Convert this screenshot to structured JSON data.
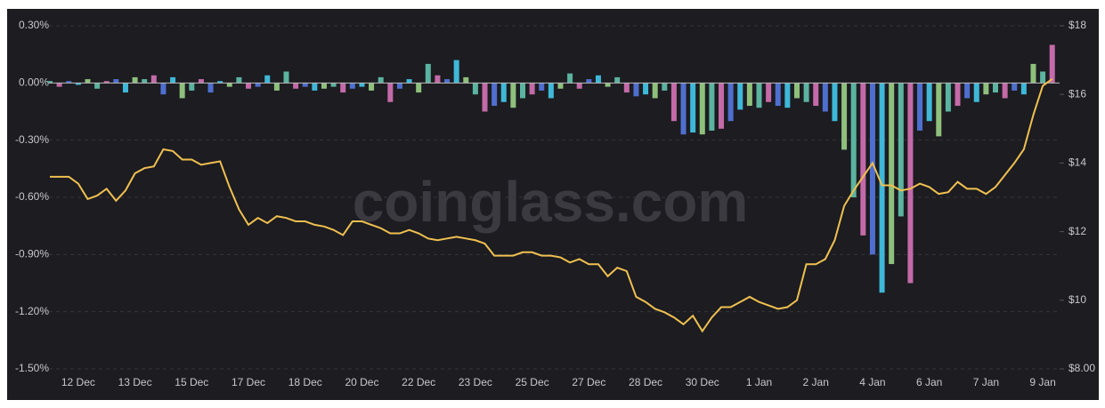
{
  "chart_data": {
    "type": "bar-line",
    "watermark": "coinglass.com",
    "categories": [
      null,
      null,
      null,
      "12 Dec",
      null,
      null,
      null,
      null,
      null,
      "13 Dec",
      null,
      null,
      null,
      null,
      null,
      "15 Dec",
      null,
      null,
      null,
      null,
      null,
      "17 Dec",
      null,
      null,
      null,
      null,
      null,
      "18 Dec",
      null,
      null,
      null,
      null,
      null,
      "20 Dec",
      null,
      null,
      null,
      null,
      null,
      "22 Dec",
      null,
      null,
      null,
      null,
      null,
      "23 Dec",
      null,
      null,
      null,
      null,
      null,
      "25 Dec",
      null,
      null,
      null,
      null,
      null,
      "27 Dec",
      null,
      null,
      null,
      null,
      null,
      "28 Dec",
      null,
      null,
      null,
      null,
      null,
      "30 Dec",
      null,
      null,
      null,
      null,
      null,
      "1 Jan",
      null,
      null,
      null,
      null,
      null,
      "2 Jan",
      null,
      null,
      null,
      null,
      null,
      "4 Jan",
      null,
      null,
      null,
      null,
      null,
      "6 Jan",
      null,
      null,
      null,
      null,
      null,
      "7 Jan",
      null,
      null,
      null,
      null,
      null,
      "9 Jan",
      null
    ],
    "bars": {
      "colors": [
        "#5bb3a0",
        "#c46aa8",
        "#4f6fcf",
        "#3fb8d8",
        "#8ec07c"
      ],
      "values": [
        0.01,
        -0.02,
        0.01,
        -0.01,
        0.02,
        -0.03,
        0.01,
        0.02,
        -0.05,
        0.03,
        0.02,
        0.04,
        -0.06,
        0.03,
        -0.08,
        -0.04,
        0.02,
        -0.05,
        0.01,
        -0.02,
        0.03,
        -0.03,
        -0.02,
        0.04,
        -0.04,
        0.06,
        -0.03,
        -0.02,
        -0.04,
        -0.03,
        -0.02,
        -0.05,
        -0.03,
        -0.02,
        -0.04,
        0.03,
        -0.1,
        -0.03,
        0.02,
        -0.05,
        0.1,
        0.04,
        0.02,
        0.12,
        0.03,
        -0.06,
        -0.15,
        -0.12,
        -0.1,
        -0.13,
        -0.08,
        -0.06,
        -0.04,
        -0.08,
        -0.03,
        0.05,
        -0.03,
        0.02,
        0.04,
        -0.02,
        0.03,
        -0.05,
        -0.07,
        -0.06,
        -0.08,
        -0.04,
        -0.2,
        -0.27,
        -0.26,
        -0.27,
        -0.25,
        -0.24,
        -0.2,
        -0.14,
        -0.12,
        -0.13,
        -0.1,
        -0.12,
        -0.13,
        -0.08,
        -0.1,
        -0.12,
        -0.15,
        -0.2,
        -0.35,
        -0.6,
        -0.8,
        -0.9,
        -1.1,
        -0.95,
        -0.7,
        -1.05,
        -0.25,
        -0.2,
        -0.28,
        -0.15,
        -0.12,
        -0.08,
        -0.1,
        -0.06,
        -0.05,
        -0.08,
        -0.04,
        -0.06,
        0.1,
        0.06,
        0.2
      ]
    },
    "line": {
      "color": "#f0c050",
      "axis": "y2",
      "values": [
        13.6,
        13.6,
        13.6,
        13.4,
        12.95,
        13.05,
        13.25,
        12.9,
        13.2,
        13.7,
        13.85,
        13.9,
        14.4,
        14.35,
        14.1,
        14.1,
        13.95,
        14.0,
        14.05,
        13.3,
        12.65,
        12.2,
        12.4,
        12.25,
        12.45,
        12.4,
        12.3,
        12.3,
        12.2,
        12.15,
        12.05,
        11.9,
        12.3,
        12.3,
        12.2,
        12.1,
        11.95,
        11.95,
        12.05,
        11.95,
        11.8,
        11.75,
        11.8,
        11.85,
        11.8,
        11.75,
        11.65,
        11.3,
        11.3,
        11.3,
        11.4,
        11.4,
        11.3,
        11.3,
        11.25,
        11.1,
        11.2,
        11.05,
        11.05,
        10.7,
        10.95,
        10.85,
        10.1,
        9.95,
        9.75,
        9.65,
        9.5,
        9.3,
        9.55,
        9.1,
        9.5,
        9.8,
        9.8,
        9.95,
        10.1,
        9.95,
        9.85,
        9.75,
        9.8,
        10.0,
        11.05,
        11.05,
        11.2,
        11.75,
        12.75,
        13.2,
        13.6,
        14.0,
        13.35,
        13.35,
        13.2,
        13.25,
        13.4,
        13.3,
        13.1,
        13.15,
        13.45,
        13.25,
        13.25,
        13.1,
        13.3,
        13.65,
        14.0,
        14.4,
        15.4,
        16.25,
        16.45
      ]
    },
    "ylim": [
      -1.5,
      0.3
    ],
    "yticks": [
      {
        "value": 0.3,
        "label": "0.30%"
      },
      {
        "value": 0,
        "label": "0.00%"
      },
      {
        "value": -0.3,
        "label": "-0.30%"
      },
      {
        "value": -0.6,
        "label": "-0.60%"
      },
      {
        "value": -0.9,
        "label": "-0.90%"
      },
      {
        "value": -1.2,
        "label": "-1.20%"
      },
      {
        "value": -1.5,
        "label": "-1.50%"
      }
    ],
    "y2lim": [
      8,
      18
    ],
    "y2ticks": [
      {
        "value": 18,
        "label": "$18"
      },
      {
        "value": 16,
        "label": "$16"
      },
      {
        "value": 14,
        "label": "$14"
      },
      {
        "value": 12,
        "label": "$12"
      },
      {
        "value": 10,
        "label": "$10"
      },
      {
        "value": 8,
        "label": "$8.00"
      }
    ],
    "grid": true
  }
}
